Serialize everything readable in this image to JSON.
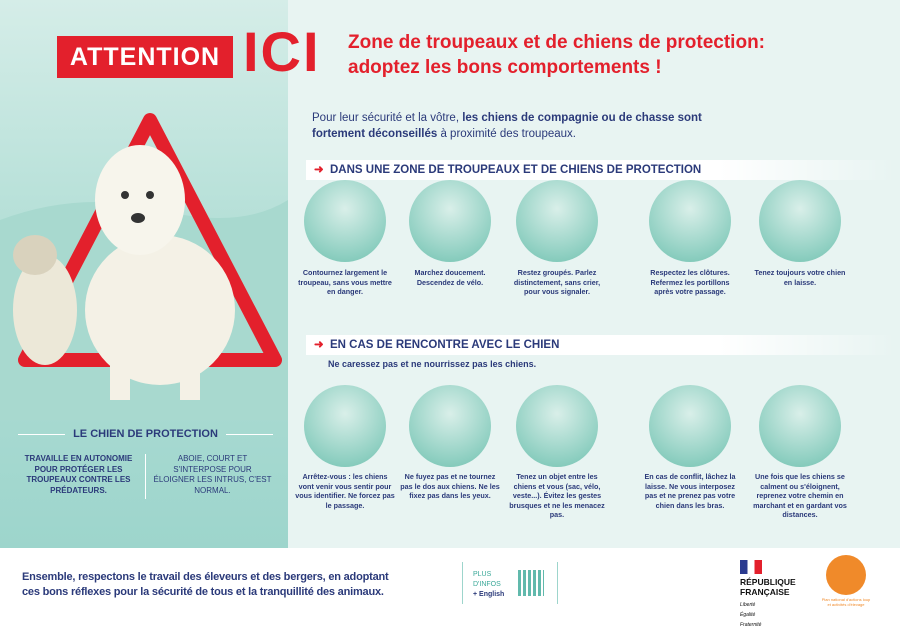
{
  "header": {
    "attention": "ATTENTION",
    "ici": "ICI",
    "subtitle_line1": "Zone de troupeaux et de chiens de protection:",
    "subtitle_line2": "adoptez les bons comportements !"
  },
  "intro": {
    "part1": "Pour leur sécurité et la vôtre, ",
    "bold": "les chiens de compagnie ou de chasse sont fortement déconseillés",
    "part2": " à proximité des troupeaux."
  },
  "section1": {
    "title": "DANS UNE ZONE DE TROUPEAUX ET DE CHIENS DE PROTECTION",
    "items": [
      "Contournez largement le troupeau, sans vous mettre en danger.",
      "Marchez doucement. Descendez de vélo.",
      "Restez groupés. Parlez distinctement, sans crier, pour vous signaler.",
      "Respectez les clôtures. Refermez les portillons après votre passage.",
      "Tenez toujours votre chien en laisse."
    ]
  },
  "section2": {
    "title": "EN CAS DE RENCONTRE AVEC LE CHIEN",
    "subtitle": "Ne caressez pas et ne nourrissez pas les chiens.",
    "items": [
      "Arrêtez-vous : les chiens vont venir vous sentir pour vous identifier. Ne forcez pas le passage.",
      "Ne fuyez pas et ne tournez pas le dos aux chiens. Ne les fixez pas dans les yeux.",
      "Tenez un objet entre les chiens et vous (sac, vélo, veste...). Évitez les gestes brusques et ne les menacez pas.",
      "En cas de conflit, lâchez la laisse. Ne vous interposez pas et ne prenez pas votre chien dans les bras.",
      "Une fois que les chiens se calment ou s'éloignent, reprenez votre chemin en marchant et en gardant vos distances."
    ]
  },
  "left": {
    "title": "LE CHIEN DE PROTECTION",
    "col1": "TRAVAILLE EN AUTONOMIE POUR PROTÉGER LES TROUPEAUX CONTRE LES PRÉDATEURS.",
    "col2": "ABOIE, COURT ET S'INTERPOSE POUR ÉLOIGNER LES INTRUS, C'EST NORMAL."
  },
  "footer": {
    "line1": "Ensemble, respectons le travail des éleveurs et des bergers, en adoptant",
    "line2": "ces bons réflexes pour la sécurité de tous et la tranquillité des animaux.",
    "plus1": "PLUS",
    "plus2": "D'INFOS",
    "plus3": "+ English",
    "rf1": "RÉPUBLIQUE",
    "rf2": "FRANÇAISE",
    "rf_motto": "Liberté Égalité Fraternité",
    "pna": "Plan national d'actions loup et activités d'élevage"
  },
  "colors": {
    "red": "#e3202c",
    "navy": "#2b3a7a",
    "teal": "#9dd5cc",
    "orange": "#f08a2a"
  }
}
